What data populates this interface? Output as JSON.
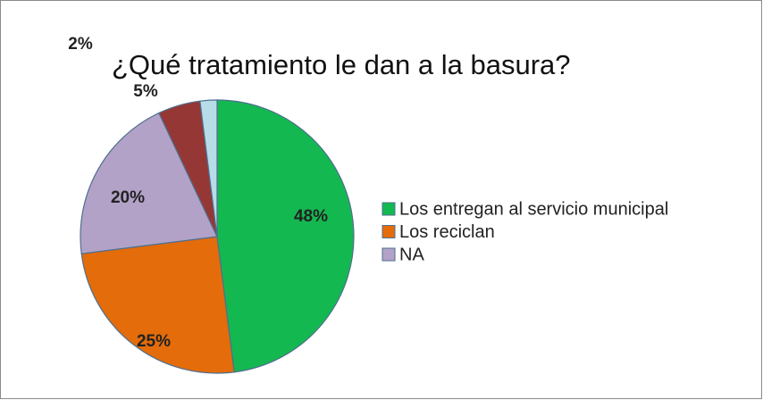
{
  "chart_data": {
    "type": "pie",
    "title": "¿Qué tratamiento le dan a la basura?",
    "categories": [
      "Los entregan al servicio municipal",
      "Los reciclan",
      "NA",
      null,
      null
    ],
    "values": [
      48,
      25,
      20,
      5,
      2
    ],
    "value_labels": [
      "48%",
      "25%",
      "20%",
      "5%",
      "2%"
    ],
    "colors": [
      "#14b850",
      "#e46c0a",
      "#b3a2c7",
      "#953735",
      "#b7dde8"
    ],
    "legend": "right"
  }
}
